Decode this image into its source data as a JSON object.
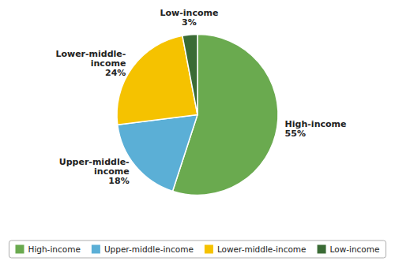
{
  "chart_data": {
    "type": "pie",
    "categories": [
      "High-income",
      "Upper-middle-income",
      "Lower-middle-income",
      "Low-income"
    ],
    "values": [
      55,
      18,
      24,
      3
    ],
    "value_labels": [
      "High-income\n55%",
      "Upper-middle-\nincome\n18%",
      "Lower-middle-\nincome\n24%",
      "Low-income\n3%"
    ],
    "colors": [
      "#6aaa4f",
      "#5bafd6",
      "#f5c200",
      "#3a6b35"
    ],
    "data_labels": true,
    "legend": "bottom"
  }
}
